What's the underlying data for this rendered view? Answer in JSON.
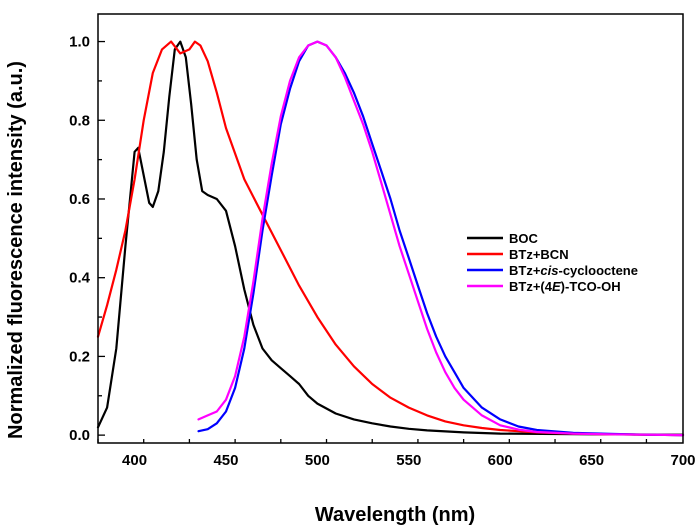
{
  "chart_data": {
    "type": "line",
    "xlabel": "Wavelength (nm)",
    "ylabel": "Normalized fluorescence intensity (a.u.)",
    "xlim": [
      380,
      700
    ],
    "ylim": [
      -0.02,
      1.07
    ],
    "xticks": [
      400,
      450,
      500,
      550,
      600,
      650,
      700
    ],
    "yticks": [
      0.0,
      0.2,
      0.4,
      0.6,
      0.8,
      1.0
    ],
    "xtick_labels": [
      "400",
      "450",
      "500",
      "550",
      "600",
      "650",
      "700"
    ],
    "ytick_labels": [
      "0.0",
      "0.2",
      "0.4",
      "0.6",
      "0.8",
      "1.0"
    ],
    "grid": false,
    "legend_position": "center-right",
    "series": [
      {
        "name": "BOC",
        "color": "#000000",
        "x": [
          380,
          385,
          390,
          395,
          400,
          402,
          405,
          408,
          410,
          413,
          416,
          419,
          422,
          425,
          428,
          431,
          434,
          437,
          440,
          445,
          450,
          455,
          460,
          465,
          470,
          475,
          480,
          485,
          490,
          495,
          500,
          510,
          520,
          530,
          540,
          550,
          560,
          580,
          600,
          650,
          700
        ],
        "y": [
          0.02,
          0.07,
          0.22,
          0.48,
          0.72,
          0.73,
          0.66,
          0.59,
          0.58,
          0.62,
          0.72,
          0.86,
          0.98,
          1.0,
          0.96,
          0.84,
          0.7,
          0.62,
          0.61,
          0.6,
          0.57,
          0.48,
          0.37,
          0.28,
          0.22,
          0.19,
          0.17,
          0.15,
          0.13,
          0.1,
          0.08,
          0.055,
          0.04,
          0.03,
          0.022,
          0.016,
          0.012,
          0.007,
          0.004,
          0.002,
          0.001
        ]
      },
      {
        "name": "BTz+BCN",
        "color": "#ff0000",
        "x": [
          380,
          385,
          390,
          395,
          400,
          405,
          410,
          415,
          420,
          425,
          430,
          433,
          436,
          440,
          445,
          450,
          460,
          470,
          480,
          490,
          500,
          510,
          520,
          530,
          540,
          550,
          560,
          570,
          580,
          590,
          600,
          610,
          620,
          640,
          660,
          680,
          700
        ],
        "y": [
          0.25,
          0.33,
          0.42,
          0.52,
          0.65,
          0.8,
          0.92,
          0.98,
          1.0,
          0.97,
          0.98,
          1.0,
          0.99,
          0.95,
          0.87,
          0.78,
          0.65,
          0.56,
          0.47,
          0.38,
          0.3,
          0.23,
          0.175,
          0.13,
          0.095,
          0.07,
          0.05,
          0.035,
          0.025,
          0.018,
          0.013,
          0.01,
          0.007,
          0.004,
          0.002,
          0.001,
          0.0
        ]
      },
      {
        "name": "BTz+cis-cyclooctene",
        "color": "#0000ff",
        "x": [
          435,
          440,
          445,
          450,
          455,
          460,
          465,
          470,
          475,
          480,
          485,
          490,
          495,
          500,
          505,
          510,
          515,
          520,
          525,
          530,
          535,
          540,
          545,
          550,
          555,
          560,
          565,
          570,
          575,
          580,
          590,
          600,
          610,
          620,
          640,
          660,
          680,
          700
        ],
        "y": [
          0.01,
          0.015,
          0.03,
          0.06,
          0.12,
          0.22,
          0.36,
          0.52,
          0.66,
          0.79,
          0.88,
          0.95,
          0.99,
          1.0,
          0.99,
          0.96,
          0.92,
          0.87,
          0.81,
          0.74,
          0.67,
          0.6,
          0.52,
          0.45,
          0.38,
          0.31,
          0.25,
          0.2,
          0.16,
          0.12,
          0.07,
          0.04,
          0.022,
          0.013,
          0.006,
          0.003,
          0.001,
          0.0
        ]
      },
      {
        "name": "BTz+(4E)-TCO-OH",
        "color": "#ff00ff",
        "x": [
          435,
          440,
          445,
          450,
          455,
          460,
          465,
          470,
          475,
          480,
          485,
          490,
          495,
          500,
          505,
          510,
          515,
          520,
          525,
          530,
          535,
          540,
          545,
          550,
          555,
          560,
          565,
          570,
          575,
          580,
          590,
          600,
          610,
          620,
          640,
          660,
          680,
          700
        ],
        "y": [
          0.04,
          0.05,
          0.06,
          0.09,
          0.15,
          0.25,
          0.39,
          0.55,
          0.69,
          0.81,
          0.9,
          0.96,
          0.99,
          1.0,
          0.99,
          0.96,
          0.91,
          0.85,
          0.79,
          0.72,
          0.64,
          0.56,
          0.48,
          0.41,
          0.34,
          0.27,
          0.21,
          0.16,
          0.12,
          0.09,
          0.05,
          0.025,
          0.014,
          0.008,
          0.004,
          0.002,
          0.001,
          0.0
        ]
      }
    ],
    "legend": [
      {
        "pre": "BOC",
        "italic": "",
        "post": ""
      },
      {
        "pre": "BTz+BCN",
        "italic": "",
        "post": ""
      },
      {
        "pre": "BTz+",
        "italic": "cis",
        "post": "-cyclooctene"
      },
      {
        "pre": "BTz+(4",
        "italic": "E",
        "post": ")-TCO-OH"
      }
    ]
  }
}
